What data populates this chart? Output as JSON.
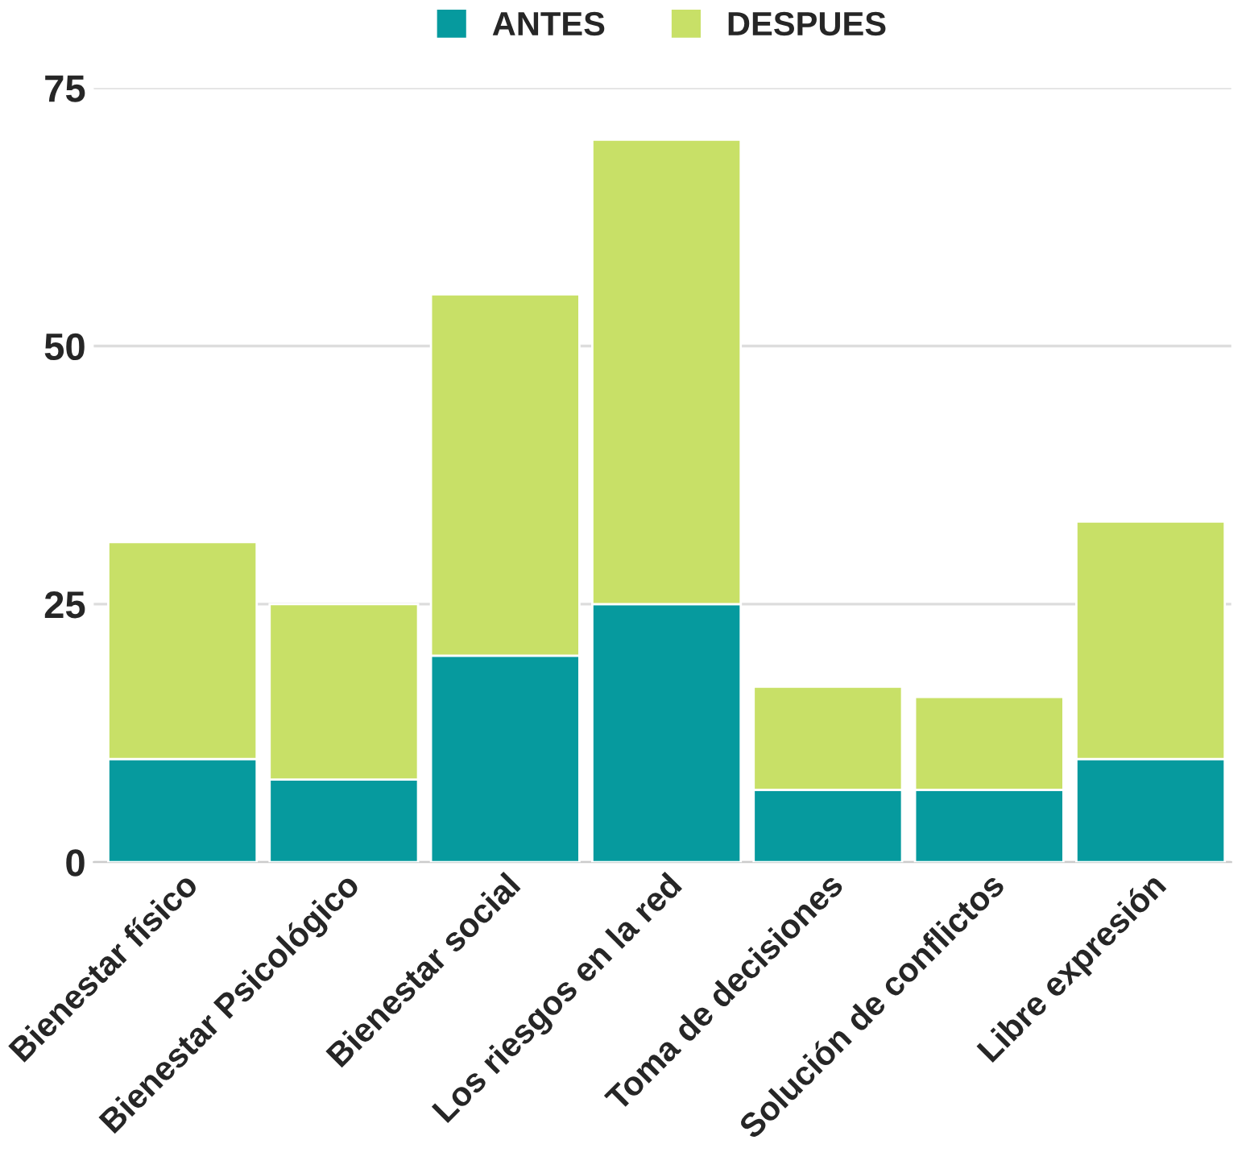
{
  "chart_data": {
    "type": "bar",
    "stacked": true,
    "categories": [
      "Bienestar físico",
      "Bienestar Psicológico",
      "Bienestar social",
      "Los riesgos en la red",
      "Toma de decisiones",
      "Solución de conflictos",
      "Libre expresión"
    ],
    "series": [
      {
        "name": "ANTES",
        "color": "#069a9e",
        "values": [
          10,
          8,
          20,
          25,
          7,
          7,
          10
        ]
      },
      {
        "name": "DESPUES",
        "color": "#c8e067",
        "values": [
          21,
          17,
          35,
          45,
          10,
          9,
          23
        ]
      }
    ],
    "ylim": [
      0,
      75
    ],
    "yticks": [
      0,
      25,
      50,
      75
    ],
    "grid": "y",
    "legend": "top"
  }
}
